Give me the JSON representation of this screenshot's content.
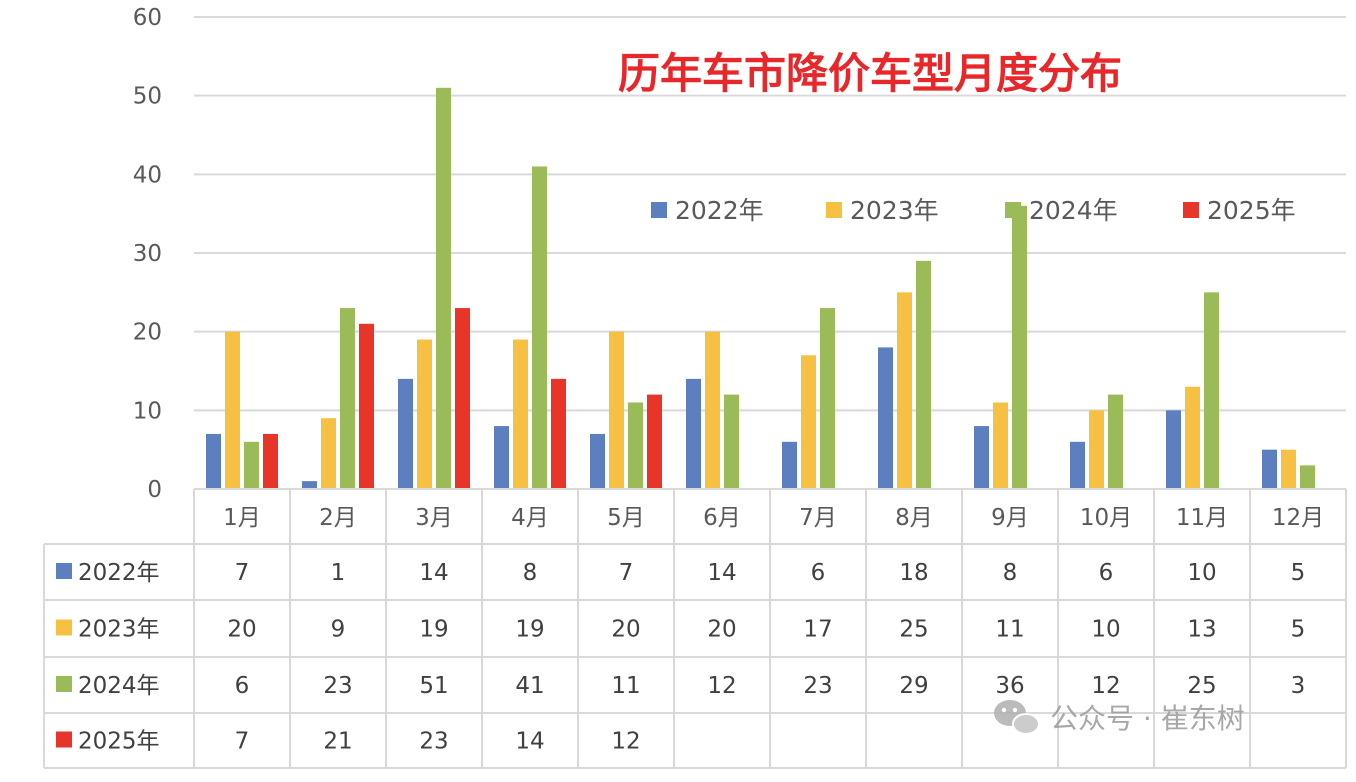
{
  "chart_data": {
    "type": "bar",
    "title": "历年车市降价车型月度分布",
    "categories": [
      "1月",
      "2月",
      "3月",
      "4月",
      "5月",
      "6月",
      "7月",
      "8月",
      "9月",
      "10月",
      "11月",
      "12月"
    ],
    "ylim": [
      0,
      60
    ],
    "yticks": [
      "0",
      "10",
      "20",
      "30",
      "40",
      "50",
      "60"
    ],
    "grid": true,
    "legend_position": "top-right",
    "data_table": true,
    "series": [
      {
        "name": "2022年",
        "color": "#5b7fbf",
        "values": [
          7,
          1,
          14,
          8,
          7,
          14,
          6,
          18,
          8,
          6,
          10,
          5
        ]
      },
      {
        "name": "2023年",
        "color": "#f6c142",
        "values": [
          20,
          9,
          19,
          19,
          20,
          20,
          17,
          25,
          11,
          10,
          13,
          5
        ]
      },
      {
        "name": "2024年",
        "color": "#9bbb59",
        "values": [
          6,
          23,
          51,
          41,
          11,
          12,
          23,
          29,
          36,
          12,
          25,
          3
        ]
      },
      {
        "name": "2025年",
        "color": "#e8352a",
        "values": [
          7,
          21,
          23,
          14,
          12,
          null,
          null,
          null,
          null,
          null,
          null,
          null
        ]
      }
    ]
  },
  "watermark": {
    "icon": "wechat-icon",
    "text": "公众号 · 崔东树"
  }
}
